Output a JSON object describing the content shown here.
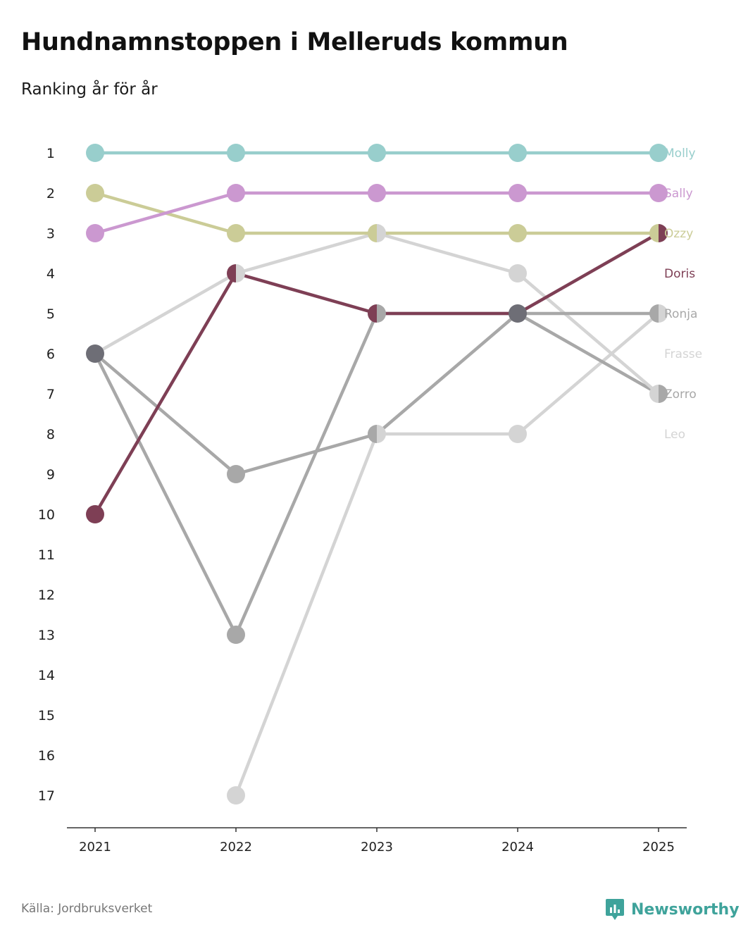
{
  "header": {
    "title": "Hundnamnstoppen i Melleruds kommun",
    "subtitle": "Ranking år för år"
  },
  "footer": {
    "source": "Källa: Jordbruksverket",
    "brand": "Newsworthy",
    "brand_color": "#3fa39b",
    "brand_icon": "bar-chart-speech-bubble-icon"
  },
  "chart_data": {
    "type": "line",
    "title": "Hundnamnstoppen i Melleruds kommun",
    "subtitle": "Ranking år för år",
    "xlabel": "",
    "ylabel": "",
    "x": [
      "2021",
      "2022",
      "2023",
      "2024",
      "2025"
    ],
    "y_ticks": [
      "1",
      "2",
      "3",
      "4",
      "5",
      "6",
      "7",
      "8",
      "9",
      "10",
      "11",
      "12",
      "13",
      "14",
      "15",
      "16",
      "17"
    ],
    "ylim": [
      1,
      17
    ],
    "y_inverted": true,
    "grid": false,
    "series": [
      {
        "name": "Molly",
        "color": "#98cecc",
        "values": [
          1,
          1,
          1,
          1,
          1
        ]
      },
      {
        "name": "Sally",
        "color": "#cb98d0",
        "values": [
          3,
          2,
          2,
          2,
          2
        ]
      },
      {
        "name": "Ozzy",
        "color": "#cbcc97",
        "values": [
          2,
          3,
          3,
          3,
          3
        ]
      },
      {
        "name": "Doris",
        "color": "#7e3f55",
        "values": [
          10,
          4,
          5,
          5,
          3
        ]
      },
      {
        "name": "Ronja",
        "color": "#a8a8a8",
        "values": [
          6,
          13,
          5,
          5,
          5
        ]
      },
      {
        "name": "Frasse",
        "color": "#d4d4d4",
        "values": [
          6,
          4,
          3,
          4,
          7
        ]
      },
      {
        "name": "Zorro",
        "color": "#a8a8a8",
        "values": [
          6,
          9,
          8,
          5,
          7
        ]
      },
      {
        "name": "Leo",
        "color": "#d4d4d4",
        "values": [
          null,
          17,
          8,
          8,
          5
        ]
      }
    ],
    "shared_marker_color": "#6e6e76"
  }
}
